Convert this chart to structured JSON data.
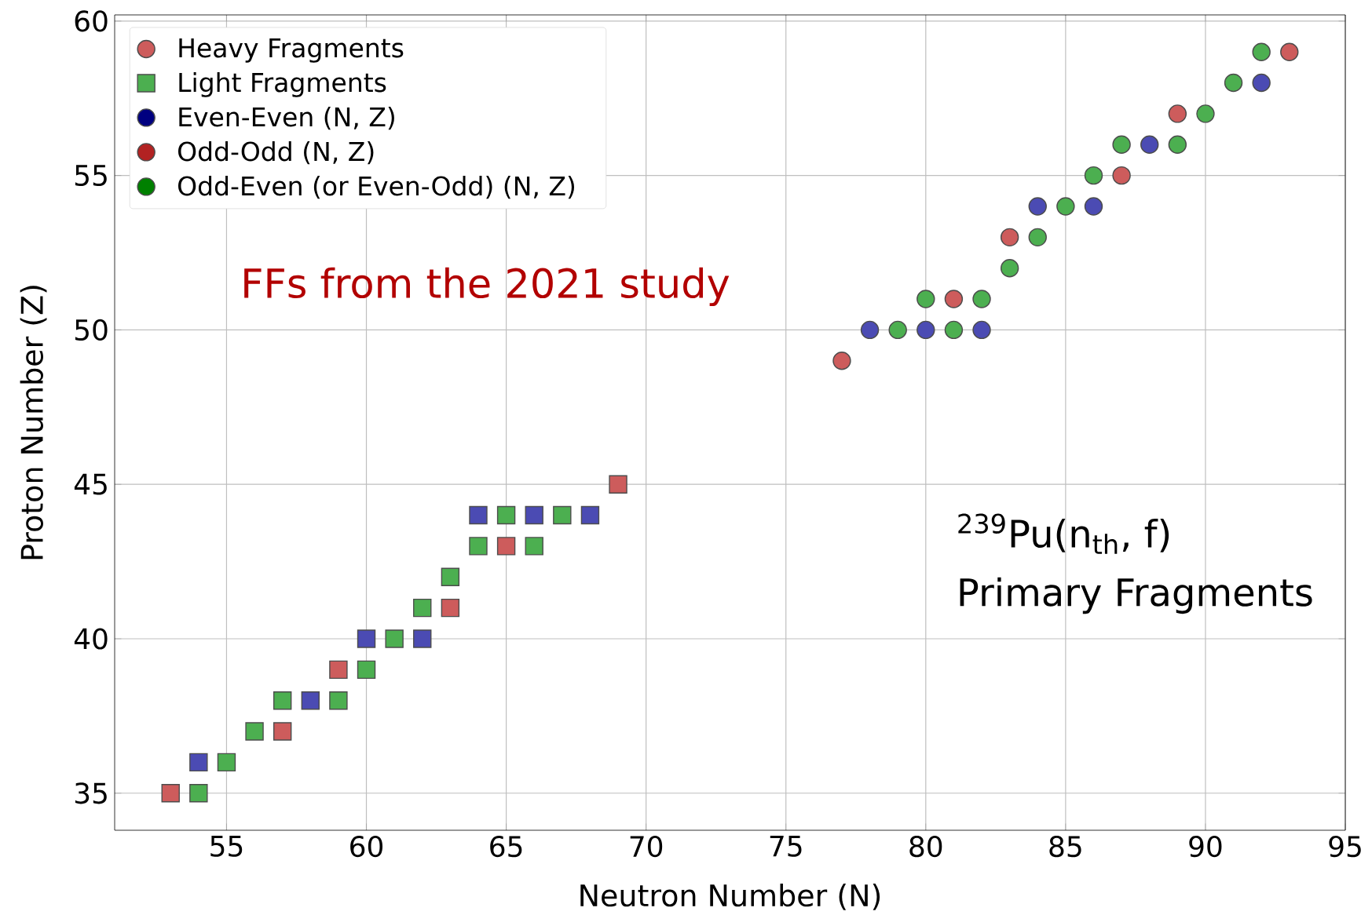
{
  "chart_data": {
    "type": "scatter",
    "xlabel": "Neutron Number (N)",
    "ylabel": "Proton Number (Z)",
    "xlim": [
      51,
      95
    ],
    "ylim": [
      33.8,
      60.2
    ],
    "xticks": [
      55,
      60,
      65,
      70,
      75,
      80,
      85,
      90,
      95
    ],
    "yticks": [
      35,
      40,
      45,
      50,
      55,
      60
    ],
    "grid": true,
    "legend": "top left",
    "annotations": [
      "FFs from the 2021 study",
      "$^{239}$Pu(n$_{th}$, f)",
      "Primary Fragments"
    ],
    "series": [
      {
        "name": "Heavy Fragments",
        "color": "#cd5c5c",
        "marker": "circle",
        "x": [
          77,
          78,
          79,
          80,
          80,
          81,
          81,
          82,
          82,
          83,
          83,
          84,
          84,
          85,
          86,
          86,
          87,
          87,
          88,
          89,
          89,
          90,
          91,
          92,
          92,
          93
        ],
        "values": [
          49,
          50,
          50,
          50,
          51,
          50,
          51,
          50,
          51,
          52,
          53,
          53,
          54,
          54,
          54,
          55,
          55,
          56,
          56,
          56,
          57,
          57,
          58,
          58,
          59,
          59
        ],
        "colors": [
          "#cd5c5c",
          "#4b4bb3",
          "#4caf50",
          "#4b4bb3",
          "#4caf50",
          "#4caf50",
          "#cd5c5c",
          "#4b4bb3",
          "#4caf50",
          "#4caf50",
          "#cd5c5c",
          "#4caf50",
          "#4b4bb3",
          "#4caf50",
          "#4b4bb3",
          "#4caf50",
          "#cd5c5c",
          "#4caf50",
          "#4b4bb3",
          "#4caf50",
          "#cd5c5c",
          "#4caf50",
          "#4caf50",
          "#4b4bb3",
          "#4caf50",
          "#cd5c5c"
        ]
      },
      {
        "name": "Light Fragments",
        "color": "#4caf50",
        "marker": "square",
        "x": [
          53,
          54,
          54,
          55,
          56,
          57,
          57,
          58,
          59,
          59,
          60,
          60,
          61,
          62,
          62,
          63,
          63,
          64,
          64,
          65,
          65,
          66,
          66,
          67,
          68,
          69
        ],
        "values": [
          35,
          35,
          36,
          36,
          37,
          37,
          38,
          38,
          38,
          39,
          39,
          40,
          40,
          40,
          41,
          41,
          42,
          43,
          44,
          43,
          44,
          43,
          44,
          44,
          44,
          45
        ],
        "colors": [
          "#cd5c5c",
          "#4caf50",
          "#4b4bb3",
          "#4caf50",
          "#4caf50",
          "#cd5c5c",
          "#4caf50",
          "#4b4bb3",
          "#4caf50",
          "#cd5c5c",
          "#4caf50",
          "#4b4bb3",
          "#4caf50",
          "#4b4bb3",
          "#4caf50",
          "#cd5c5c",
          "#4caf50",
          "#4caf50",
          "#4b4bb3",
          "#cd5c5c",
          "#4caf50",
          "#4caf50",
          "#4b4bb3",
          "#4caf50",
          "#4b4bb3",
          "#cd5c5c"
        ]
      },
      {
        "name": "Even-Even (N, Z)",
        "color": "#000080",
        "marker": "circle"
      },
      {
        "name": "Odd-Odd (N, Z)",
        "color": "#b22222",
        "marker": "circle"
      },
      {
        "name": "Odd-Even (or Even-Odd) (N, Z)",
        "color": "#008000",
        "marker": "circle"
      }
    ]
  }
}
